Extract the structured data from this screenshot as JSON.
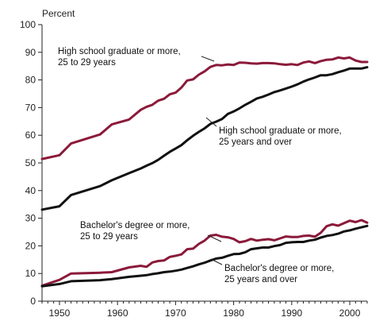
{
  "chart_data": {
    "type": "line",
    "title": "",
    "ylabel": "Percent",
    "xlabel": "",
    "ylim": [
      0,
      100
    ],
    "xlim": [
      1947,
      2003
    ],
    "yticks": [
      0,
      10,
      20,
      30,
      40,
      50,
      60,
      70,
      80,
      90,
      100
    ],
    "xticks": [
      1950,
      1960,
      1970,
      1980,
      1990,
      2000
    ],
    "grid": false,
    "legend": "none",
    "series": [
      {
        "name": "High school graduate or more, 25 to 29 years",
        "label_lines": [
          "High school graduate or more,",
          "25 to 29 years"
        ],
        "color": "#8b1a3a",
        "points": [
          [
            1947,
            51.4
          ],
          [
            1950,
            52.8
          ],
          [
            1952,
            57.0
          ],
          [
            1957,
            60.3
          ],
          [
            1959,
            63.9
          ],
          [
            1962,
            65.7
          ],
          [
            1964,
            69.2
          ],
          [
            1965,
            70.3
          ],
          [
            1966,
            71.0
          ],
          [
            1967,
            72.5
          ],
          [
            1968,
            73.2
          ],
          [
            1969,
            74.8
          ],
          [
            1970,
            75.4
          ],
          [
            1971,
            77.2
          ],
          [
            1972,
            79.8
          ],
          [
            1973,
            80.2
          ],
          [
            1974,
            81.9
          ],
          [
            1975,
            83.1
          ],
          [
            1976,
            84.7
          ],
          [
            1977,
            85.4
          ],
          [
            1978,
            85.3
          ],
          [
            1979,
            85.6
          ],
          [
            1980,
            85.4
          ],
          [
            1981,
            86.3
          ],
          [
            1982,
            86.2
          ],
          [
            1983,
            86.0
          ],
          [
            1984,
            85.9
          ],
          [
            1985,
            86.1
          ],
          [
            1986,
            86.1
          ],
          [
            1987,
            86.0
          ],
          [
            1988,
            85.7
          ],
          [
            1989,
            85.5
          ],
          [
            1990,
            85.7
          ],
          [
            1991,
            85.4
          ],
          [
            1992,
            86.3
          ],
          [
            1993,
            86.7
          ],
          [
            1994,
            86.1
          ],
          [
            1995,
            86.8
          ],
          [
            1996,
            87.3
          ],
          [
            1997,
            87.4
          ],
          [
            1998,
            88.1
          ],
          [
            1999,
            87.8
          ],
          [
            2000,
            88.1
          ],
          [
            2001,
            87.0
          ],
          [
            2002,
            86.5
          ],
          [
            2003,
            86.5
          ]
        ]
      },
      {
        "name": "High school graduate or more, 25 years and over",
        "label_lines": [
          "High school graduate or more,",
          "25 years and over"
        ],
        "color": "#111111",
        "points": [
          [
            1947,
            33.1
          ],
          [
            1950,
            34.3
          ],
          [
            1952,
            38.4
          ],
          [
            1957,
            41.6
          ],
          [
            1959,
            43.7
          ],
          [
            1962,
            46.3
          ],
          [
            1964,
            48.0
          ],
          [
            1965,
            49.0
          ],
          [
            1966,
            49.9
          ],
          [
            1967,
            51.1
          ],
          [
            1968,
            52.6
          ],
          [
            1969,
            54.0
          ],
          [
            1970,
            55.2
          ],
          [
            1971,
            56.4
          ],
          [
            1972,
            58.2
          ],
          [
            1973,
            59.8
          ],
          [
            1974,
            61.2
          ],
          [
            1975,
            62.5
          ],
          [
            1976,
            64.1
          ],
          [
            1977,
            64.9
          ],
          [
            1978,
            65.9
          ],
          [
            1979,
            67.7
          ],
          [
            1980,
            68.6
          ],
          [
            1981,
            69.7
          ],
          [
            1982,
            71.0
          ],
          [
            1983,
            72.1
          ],
          [
            1984,
            73.3
          ],
          [
            1985,
            73.9
          ],
          [
            1986,
            74.7
          ],
          [
            1987,
            75.6
          ],
          [
            1988,
            76.2
          ],
          [
            1989,
            76.9
          ],
          [
            1990,
            77.6
          ],
          [
            1991,
            78.4
          ],
          [
            1992,
            79.4
          ],
          [
            1993,
            80.2
          ],
          [
            1994,
            80.9
          ],
          [
            1995,
            81.7
          ],
          [
            1996,
            81.7
          ],
          [
            1997,
            82.1
          ],
          [
            1998,
            82.8
          ],
          [
            1999,
            83.4
          ],
          [
            2000,
            84.1
          ],
          [
            2001,
            84.1
          ],
          [
            2002,
            84.1
          ],
          [
            2003,
            84.6
          ]
        ]
      },
      {
        "name": "Bachelor's degree or more, 25 to 29 years",
        "label_lines": [
          "Bachelor's degree or more,",
          "25 to 29 years"
        ],
        "color": "#8b1a3a",
        "points": [
          [
            1947,
            5.6
          ],
          [
            1950,
            7.7
          ],
          [
            1952,
            10.0
          ],
          [
            1957,
            10.3
          ],
          [
            1959,
            10.5
          ],
          [
            1962,
            12.2
          ],
          [
            1964,
            12.8
          ],
          [
            1965,
            12.4
          ],
          [
            1966,
            14.0
          ],
          [
            1967,
            14.5
          ],
          [
            1968,
            14.7
          ],
          [
            1969,
            16.0
          ],
          [
            1970,
            16.4
          ],
          [
            1971,
            16.9
          ],
          [
            1972,
            18.8
          ],
          [
            1973,
            19.0
          ],
          [
            1974,
            20.7
          ],
          [
            1975,
            21.9
          ],
          [
            1976,
            23.7
          ],
          [
            1977,
            24.0
          ],
          [
            1978,
            23.3
          ],
          [
            1979,
            23.1
          ],
          [
            1980,
            22.5
          ],
          [
            1981,
            21.3
          ],
          [
            1982,
            21.7
          ],
          [
            1983,
            22.5
          ],
          [
            1984,
            21.9
          ],
          [
            1985,
            22.2
          ],
          [
            1986,
            22.4
          ],
          [
            1987,
            22.0
          ],
          [
            1988,
            22.7
          ],
          [
            1989,
            23.4
          ],
          [
            1990,
            23.2
          ],
          [
            1991,
            23.2
          ],
          [
            1992,
            23.6
          ],
          [
            1993,
            23.7
          ],
          [
            1994,
            23.3
          ],
          [
            1995,
            24.7
          ],
          [
            1996,
            27.1
          ],
          [
            1997,
            27.8
          ],
          [
            1998,
            27.3
          ],
          [
            1999,
            28.2
          ],
          [
            2000,
            29.1
          ],
          [
            2001,
            28.6
          ],
          [
            2002,
            29.3
          ],
          [
            2003,
            28.4
          ]
        ]
      },
      {
        "name": "Bachelor's degree or more, 25 years and over",
        "label_lines": [
          "Bachelor's degree or more,",
          "25 years and over"
        ],
        "color": "#111111",
        "points": [
          [
            1947,
            5.4
          ],
          [
            1950,
            6.2
          ],
          [
            1952,
            7.2
          ],
          [
            1957,
            7.6
          ],
          [
            1959,
            8.0
          ],
          [
            1962,
            8.8
          ],
          [
            1964,
            9.2
          ],
          [
            1965,
            9.4
          ],
          [
            1966,
            9.8
          ],
          [
            1967,
            10.1
          ],
          [
            1968,
            10.5
          ],
          [
            1969,
            10.7
          ],
          [
            1970,
            11.0
          ],
          [
            1971,
            11.4
          ],
          [
            1972,
            12.0
          ],
          [
            1973,
            12.6
          ],
          [
            1974,
            13.3
          ],
          [
            1975,
            13.9
          ],
          [
            1976,
            14.7
          ],
          [
            1977,
            15.4
          ],
          [
            1978,
            15.7
          ],
          [
            1979,
            16.4
          ],
          [
            1980,
            17.0
          ],
          [
            1981,
            17.1
          ],
          [
            1982,
            17.7
          ],
          [
            1983,
            18.8
          ],
          [
            1984,
            19.1
          ],
          [
            1985,
            19.4
          ],
          [
            1986,
            19.4
          ],
          [
            1987,
            19.9
          ],
          [
            1988,
            20.3
          ],
          [
            1989,
            21.1
          ],
          [
            1990,
            21.3
          ],
          [
            1991,
            21.4
          ],
          [
            1992,
            21.4
          ],
          [
            1993,
            21.9
          ],
          [
            1994,
            22.2
          ],
          [
            1995,
            23.0
          ],
          [
            1996,
            23.6
          ],
          [
            1997,
            23.9
          ],
          [
            1998,
            24.4
          ],
          [
            1999,
            25.2
          ],
          [
            2000,
            25.6
          ],
          [
            2001,
            26.2
          ],
          [
            2002,
            26.7
          ],
          [
            2003,
            27.2
          ]
        ]
      }
    ]
  }
}
